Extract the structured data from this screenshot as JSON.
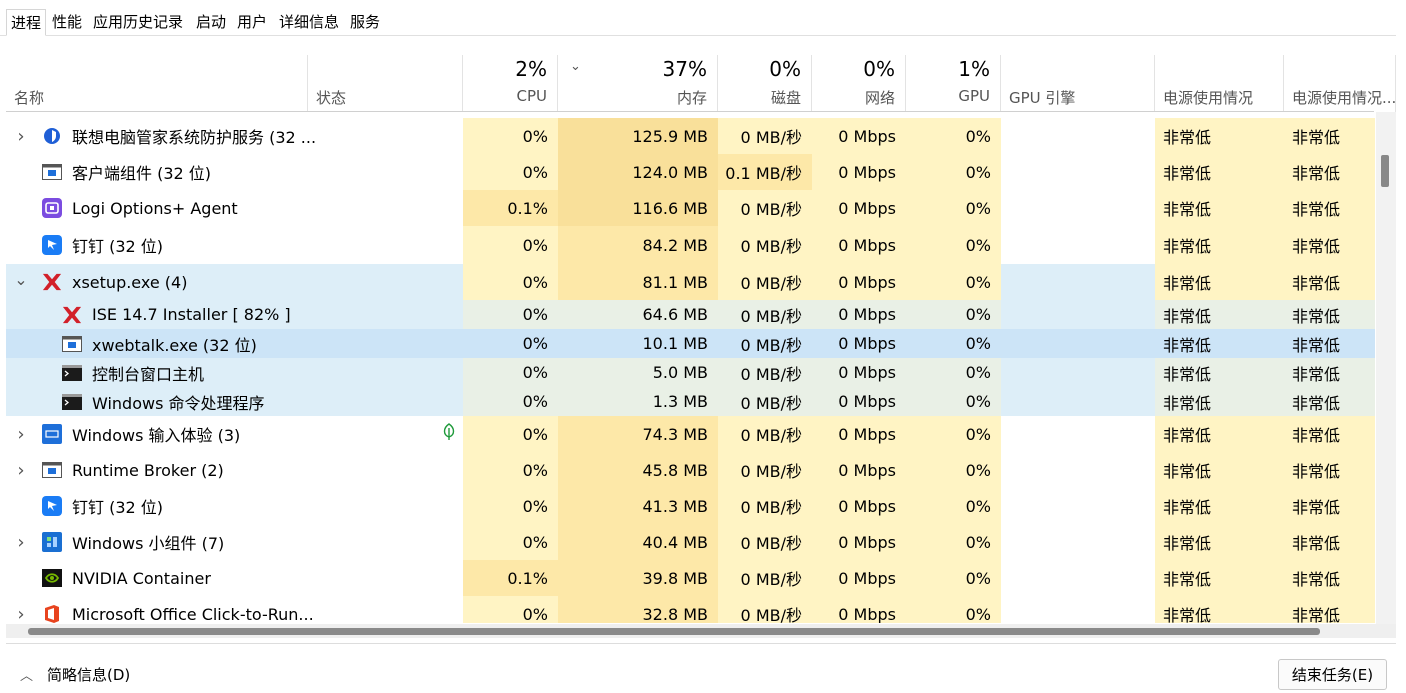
{
  "tabs": [
    {
      "label": "进程",
      "active": true
    },
    {
      "label": "性能",
      "active": false
    },
    {
      "label": "应用历史记录",
      "active": false
    },
    {
      "label": "启动",
      "active": false
    },
    {
      "label": "用户",
      "active": false
    },
    {
      "label": "详细信息",
      "active": false
    },
    {
      "label": "服务",
      "active": false
    }
  ],
  "columns": {
    "name": {
      "label": "名称"
    },
    "status": {
      "label": "状态"
    },
    "cpu": {
      "pct": "2%",
      "label": "CPU"
    },
    "mem": {
      "pct": "37%",
      "label": "内存",
      "sort_icon": "chevron-down-icon",
      "sort_glyph": "⌄"
    },
    "disk": {
      "pct": "0%",
      "label": "磁盘"
    },
    "net": {
      "pct": "0%",
      "label": "网络"
    },
    "gpu": {
      "pct": "1%",
      "label": "GPU"
    },
    "gpueng": {
      "label": "GPU 引擎"
    },
    "power": {
      "label": "电源使用情况"
    },
    "powertrend": {
      "label": "电源使用情况..."
    }
  },
  "rows": [
    {
      "name": "联想电脑管家系统防护服务 (32 ...",
      "icon": "lenovo-shield-icon",
      "expandable": true,
      "expanded": false,
      "child": false,
      "cpu": "0%",
      "mem": "125.9 MB",
      "disk": "0 MB/秒",
      "net": "0 Mbps",
      "gpu": "0%",
      "power": "非常低",
      "power_trend": "非常低"
    },
    {
      "name": "客户端组件 (32 位)",
      "icon": "window-app-icon",
      "expandable": false,
      "child": false,
      "cpu": "0%",
      "mem": "124.0 MB",
      "disk": "0.1 MB/秒",
      "net": "0 Mbps",
      "gpu": "0%",
      "power": "非常低",
      "power_trend": "非常低"
    },
    {
      "name": "Logi Options+ Agent",
      "icon": "logi-options-icon",
      "expandable": false,
      "child": false,
      "cpu": "0.1%",
      "mem": "116.6 MB",
      "disk": "0 MB/秒",
      "net": "0 Mbps",
      "gpu": "0%",
      "power": "非常低",
      "power_trend": "非常低"
    },
    {
      "name": "钉钉 (32 位)",
      "icon": "dingtalk-icon",
      "expandable": false,
      "child": false,
      "cpu": "0%",
      "mem": "84.2 MB",
      "disk": "0 MB/秒",
      "net": "0 Mbps",
      "gpu": "0%",
      "power": "非常低",
      "power_trend": "非常低"
    },
    {
      "name": "xsetup.exe (4)",
      "icon": "xilinx-icon",
      "expandable": true,
      "expanded": true,
      "child": false,
      "cpu": "0%",
      "mem": "81.1 MB",
      "disk": "0 MB/秒",
      "net": "0 Mbps",
      "gpu": "0%",
      "power": "非常低",
      "power_trend": "非常低"
    },
    {
      "name": "ISE 14.7 Installer [ 82% ]",
      "icon": "xilinx-icon",
      "expandable": false,
      "child": true,
      "cpu": "0%",
      "mem": "64.6 MB",
      "disk": "0 MB/秒",
      "net": "0 Mbps",
      "gpu": "0%",
      "power": "非常低",
      "power_trend": "非常低"
    },
    {
      "name": "xwebtalk.exe (32 位)",
      "icon": "window-app-icon",
      "expandable": false,
      "child": true,
      "selected": true,
      "cpu": "0%",
      "mem": "10.1 MB",
      "disk": "0 MB/秒",
      "net": "0 Mbps",
      "gpu": "0%",
      "power": "非常低",
      "power_trend": "非常低"
    },
    {
      "name": "控制台窗口主机",
      "icon": "console-icon",
      "expandable": false,
      "child": true,
      "cpu": "0%",
      "mem": "5.0 MB",
      "disk": "0 MB/秒",
      "net": "0 Mbps",
      "gpu": "0%",
      "power": "非常低",
      "power_trend": "非常低"
    },
    {
      "name": "Windows 命令处理程序",
      "icon": "console-icon",
      "expandable": false,
      "child": true,
      "cpu": "0%",
      "mem": "1.3 MB",
      "disk": "0 MB/秒",
      "net": "0 Mbps",
      "gpu": "0%",
      "power": "非常低",
      "power_trend": "非常低"
    },
    {
      "name": "Windows 输入体验 (3)",
      "icon": "windows-input-icon",
      "expandable": true,
      "expanded": false,
      "child": false,
      "status_icon": "efficiency-leaf-icon",
      "cpu": "0%",
      "mem": "74.3 MB",
      "disk": "0 MB/秒",
      "net": "0 Mbps",
      "gpu": "0%",
      "power": "非常低",
      "power_trend": "非常低"
    },
    {
      "name": "Runtime Broker (2)",
      "icon": "window-app-icon",
      "expandable": true,
      "expanded": false,
      "child": false,
      "cpu": "0%",
      "mem": "45.8 MB",
      "disk": "0 MB/秒",
      "net": "0 Mbps",
      "gpu": "0%",
      "power": "非常低",
      "power_trend": "非常低"
    },
    {
      "name": "钉钉 (32 位)",
      "icon": "dingtalk-icon",
      "expandable": false,
      "child": false,
      "cpu": "0%",
      "mem": "41.3 MB",
      "disk": "0 MB/秒",
      "net": "0 Mbps",
      "gpu": "0%",
      "power": "非常低",
      "power_trend": "非常低"
    },
    {
      "name": "Windows 小组件 (7)",
      "icon": "widgets-icon",
      "expandable": true,
      "expanded": false,
      "child": false,
      "cpu": "0%",
      "mem": "40.4 MB",
      "disk": "0 MB/秒",
      "net": "0 Mbps",
      "gpu": "0%",
      "power": "非常低",
      "power_trend": "非常低"
    },
    {
      "name": "NVIDIA Container",
      "icon": "nvidia-icon",
      "expandable": false,
      "child": false,
      "cpu": "0.1%",
      "mem": "39.8 MB",
      "disk": "0 MB/秒",
      "net": "0 Mbps",
      "gpu": "0%",
      "power": "非常低",
      "power_trend": "非常低"
    },
    {
      "name": "Microsoft Office Click-to-Run...",
      "icon": "office-icon",
      "expandable": true,
      "expanded": false,
      "child": false,
      "cpu": "0%",
      "mem": "32.8 MB",
      "disk": "0 MB/秒",
      "net": "0 Mbps",
      "gpu": "0%",
      "power": "非常低",
      "power_trend": "非常低"
    }
  ],
  "footer": {
    "fewer_details": "简略信息(D)",
    "fewer_icon": "chevron-up-icon",
    "end_task": "结束任务(E)"
  },
  "colors": {
    "heat_light": "#fff4c4",
    "heat_mid": "#fde8a8",
    "heat_strong": "#f9e09a",
    "group_bg": "#ddeef8",
    "selected_bg": "#cce4f7",
    "child_heat": "#e9f0e6"
  }
}
